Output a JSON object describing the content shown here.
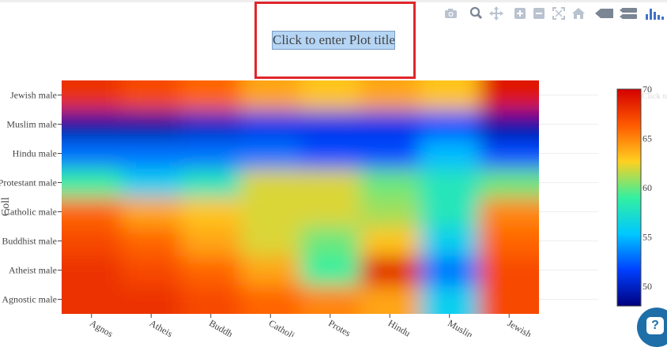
{
  "title": {
    "text": "Click to enter Plot title"
  },
  "modebar": [
    {
      "icon": "camera-icon"
    },
    {
      "icon": "zoom-icon"
    },
    {
      "icon": "pan-icon"
    },
    {
      "icon": "zoom-in-icon"
    },
    {
      "icon": "zoom-out-icon"
    },
    {
      "icon": "autoscale-icon"
    },
    {
      "icon": "home-icon"
    },
    {
      "icon": "spike-lines-icon"
    },
    {
      "icon": "compare-hover-icon"
    },
    {
      "icon": "plotly-logo-icon"
    }
  ],
  "colorbar": {
    "ticks": [
      "50",
      "55",
      "60",
      "65",
      "70"
    ],
    "colorscale": [
      "#00007f",
      "#0040ff",
      "#00c8ff",
      "#33f0a0",
      "#ffd020",
      "#ff5a00",
      "#d40000"
    ],
    "min": 48,
    "max": 70
  },
  "ghost_text": "Click to enter",
  "help": {
    "label": "?"
  },
  "chart_data": {
    "type": "heatmap",
    "title": "Click to enter Plot title",
    "ylabel": "Coll",
    "xlabel": "",
    "x": [
      "Agnostic",
      "Atheist",
      "Buddhist",
      "Catholic",
      "Protestant",
      "Hindu",
      "Muslim",
      "Jewish"
    ],
    "x_tick_labels": [
      "Agnos",
      "Atheis",
      "Buddh",
      "Catholi",
      "Protes",
      "Hindu",
      "Muslin",
      "Jewish"
    ],
    "y": [
      "Agnostic male",
      "Atheist male",
      "Buddhist male",
      "Catholic male",
      "Protestant male",
      "Hindu male",
      "Muslim male",
      "Jewish male"
    ],
    "z": [
      [
        68,
        68,
        67,
        66,
        65,
        64,
        56,
        67
      ],
      [
        68,
        67,
        66,
        64,
        59,
        69,
        53,
        67
      ],
      [
        67,
        66,
        64,
        62,
        60,
        63,
        56,
        66
      ],
      [
        66,
        64,
        63,
        62,
        62,
        61,
        58,
        65
      ],
      [
        59,
        56,
        58,
        62,
        62,
        60,
        58,
        60
      ],
      [
        53,
        53,
        53,
        53,
        52,
        52,
        55,
        52
      ],
      [
        49,
        49,
        50,
        51,
        51,
        51,
        52,
        49
      ],
      [
        68,
        67,
        66,
        64,
        63,
        64,
        63,
        69
      ]
    ],
    "zlim": [
      48,
      70
    ],
    "interpolation": "smooth",
    "colorbar": true
  }
}
